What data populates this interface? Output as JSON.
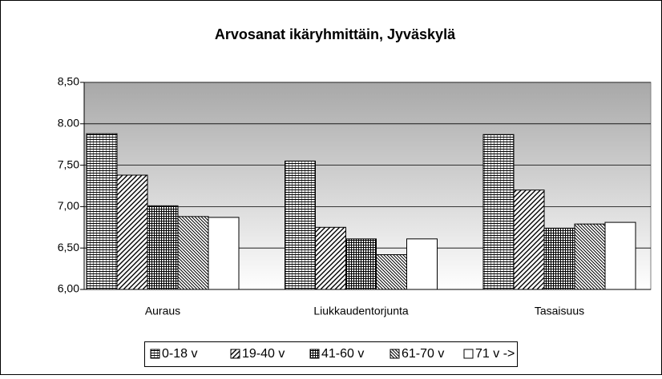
{
  "chart_data": {
    "type": "bar",
    "title": "Arvosanat ikäryhmittäin, Jyväskylä",
    "categories": [
      "Auraus",
      "Liukkaudentorjunta",
      "Tasaisuus"
    ],
    "series": [
      {
        "name": "0-18 v",
        "values": [
          7.88,
          7.55,
          7.87
        ]
      },
      {
        "name": "19-40 v",
        "values": [
          7.38,
          6.75,
          7.2
        ]
      },
      {
        "name": "41-60 v",
        "values": [
          7.01,
          6.61,
          6.74
        ]
      },
      {
        "name": "61-70 v",
        "values": [
          6.88,
          6.42,
          6.79
        ]
      },
      {
        "name": "71 v ->",
        "values": [
          6.87,
          6.61,
          6.81
        ]
      }
    ],
    "ylim": [
      6,
      8.5
    ],
    "yticks": [
      {
        "value": 6,
        "label": "6,00"
      },
      {
        "value": 6.5,
        "label": "6,50"
      },
      {
        "value": 7,
        "label": "7,00"
      },
      {
        "value": 7.5,
        "label": "7,50"
      },
      {
        "value": 8,
        "label": "8.00"
      },
      {
        "value": 8.5,
        "label": "8,50"
      }
    ],
    "grid": true,
    "legend": "bottom"
  }
}
